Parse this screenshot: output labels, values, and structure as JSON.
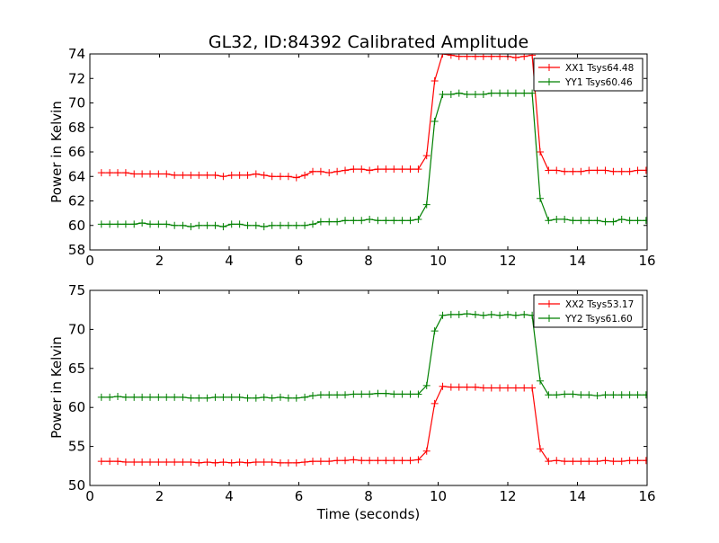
{
  "figure": {
    "title": "GL32, ID:84392 Calibrated Amplitude",
    "xlabel": "Time (seconds)"
  },
  "chart_data": [
    {
      "type": "line",
      "title": "GL32, ID:84392 Calibrated Amplitude",
      "xlabel": "",
      "ylabel": "Power in Kelvin",
      "xlim": [
        0,
        16
      ],
      "ylim": [
        58,
        74
      ],
      "xticks": [
        0,
        2,
        4,
        6,
        8,
        10,
        12,
        14,
        16
      ],
      "yticks": [
        58,
        60,
        62,
        64,
        66,
        68,
        70,
        72,
        74
      ],
      "grid": false,
      "legend_position": "top-right",
      "x": [
        0.33,
        0.57,
        0.8,
        1.03,
        1.27,
        1.5,
        1.73,
        1.97,
        2.2,
        2.43,
        2.67,
        2.9,
        3.13,
        3.37,
        3.6,
        3.83,
        4.07,
        4.3,
        4.53,
        4.77,
        5.0,
        5.23,
        5.47,
        5.7,
        5.93,
        6.17,
        6.4,
        6.63,
        6.87,
        7.1,
        7.33,
        7.57,
        7.8,
        8.03,
        8.27,
        8.5,
        8.73,
        8.97,
        9.2,
        9.43,
        9.67,
        9.9,
        10.13,
        10.37,
        10.6,
        10.83,
        11.07,
        11.3,
        11.53,
        11.77,
        12.0,
        12.23,
        12.47,
        12.7,
        12.93,
        13.17,
        13.4,
        13.63,
        13.87,
        14.1,
        14.33,
        14.57,
        14.8,
        15.03,
        15.27,
        15.5,
        15.73,
        15.97
      ],
      "series": [
        {
          "name": "XX1 Tsys64.48",
          "color": "#ff0000",
          "values": [
            64.3,
            64.3,
            64.3,
            64.3,
            64.2,
            64.2,
            64.2,
            64.2,
            64.2,
            64.1,
            64.1,
            64.1,
            64.1,
            64.1,
            64.1,
            64.0,
            64.1,
            64.1,
            64.1,
            64.2,
            64.1,
            64.0,
            64.0,
            64.0,
            63.9,
            64.1,
            64.4,
            64.4,
            64.3,
            64.4,
            64.5,
            64.6,
            64.6,
            64.5,
            64.6,
            64.6,
            64.6,
            64.6,
            64.6,
            64.6,
            65.7,
            71.8,
            74.0,
            73.9,
            73.8,
            73.8,
            73.8,
            73.8,
            73.8,
            73.8,
            73.8,
            73.7,
            73.8,
            73.9,
            66.0,
            64.5,
            64.5,
            64.4,
            64.4,
            64.4,
            64.5,
            64.5,
            64.5,
            64.4,
            64.4,
            64.4,
            64.5,
            64.5
          ]
        },
        {
          "name": "YY1 Tsys60.46",
          "color": "#008000",
          "values": [
            60.1,
            60.1,
            60.1,
            60.1,
            60.1,
            60.2,
            60.1,
            60.1,
            60.1,
            60.0,
            60.0,
            59.9,
            60.0,
            60.0,
            60.0,
            59.9,
            60.1,
            60.1,
            60.0,
            60.0,
            59.9,
            60.0,
            60.0,
            60.0,
            60.0,
            60.0,
            60.1,
            60.3,
            60.3,
            60.3,
            60.4,
            60.4,
            60.4,
            60.5,
            60.4,
            60.4,
            60.4,
            60.4,
            60.4,
            60.5,
            61.7,
            68.5,
            70.7,
            70.7,
            70.8,
            70.7,
            70.7,
            70.7,
            70.8,
            70.8,
            70.8,
            70.8,
            70.8,
            70.8,
            62.2,
            60.4,
            60.5,
            60.5,
            60.4,
            60.4,
            60.4,
            60.4,
            60.3,
            60.3,
            60.5,
            60.4,
            60.4,
            60.4
          ]
        }
      ]
    },
    {
      "type": "line",
      "title": "",
      "xlabel": "Time (seconds)",
      "ylabel": "Power in Kelvin",
      "xlim": [
        0,
        16
      ],
      "ylim": [
        50,
        75
      ],
      "xticks": [
        0,
        2,
        4,
        6,
        8,
        10,
        12,
        14,
        16
      ],
      "yticks": [
        50,
        55,
        60,
        65,
        70,
        75
      ],
      "grid": false,
      "legend_position": "top-right",
      "x": [
        0.33,
        0.57,
        0.8,
        1.03,
        1.27,
        1.5,
        1.73,
        1.97,
        2.2,
        2.43,
        2.67,
        2.9,
        3.13,
        3.37,
        3.6,
        3.83,
        4.07,
        4.3,
        4.53,
        4.77,
        5.0,
        5.23,
        5.47,
        5.7,
        5.93,
        6.17,
        6.4,
        6.63,
        6.87,
        7.1,
        7.33,
        7.57,
        7.8,
        8.03,
        8.27,
        8.5,
        8.73,
        8.97,
        9.2,
        9.43,
        9.67,
        9.9,
        10.13,
        10.37,
        10.6,
        10.83,
        11.07,
        11.3,
        11.53,
        11.77,
        12.0,
        12.23,
        12.47,
        12.7,
        12.93,
        13.17,
        13.4,
        13.63,
        13.87,
        14.1,
        14.33,
        14.57,
        14.8,
        15.03,
        15.27,
        15.5,
        15.73,
        15.97
      ],
      "series": [
        {
          "name": "XX2 Tsys53.17",
          "color": "#ff0000",
          "values": [
            53.1,
            53.1,
            53.1,
            53.0,
            53.0,
            53.0,
            53.0,
            53.0,
            53.0,
            53.0,
            53.0,
            53.0,
            52.9,
            53.0,
            52.9,
            53.0,
            52.9,
            53.0,
            52.9,
            53.0,
            53.0,
            53.0,
            52.9,
            52.9,
            52.9,
            53.0,
            53.1,
            53.1,
            53.1,
            53.2,
            53.2,
            53.3,
            53.2,
            53.2,
            53.2,
            53.2,
            53.2,
            53.2,
            53.2,
            53.3,
            54.4,
            60.5,
            62.7,
            62.6,
            62.6,
            62.6,
            62.6,
            62.5,
            62.5,
            62.5,
            62.5,
            62.5,
            62.5,
            62.5,
            54.7,
            53.1,
            53.2,
            53.1,
            53.1,
            53.1,
            53.1,
            53.1,
            53.2,
            53.1,
            53.1,
            53.2,
            53.2,
            53.2
          ]
        },
        {
          "name": "YY2 Tsys61.60",
          "color": "#008000",
          "values": [
            61.3,
            61.3,
            61.4,
            61.3,
            61.3,
            61.3,
            61.3,
            61.3,
            61.3,
            61.3,
            61.3,
            61.2,
            61.2,
            61.2,
            61.3,
            61.3,
            61.3,
            61.3,
            61.2,
            61.2,
            61.3,
            61.2,
            61.3,
            61.2,
            61.2,
            61.3,
            61.5,
            61.6,
            61.6,
            61.6,
            61.6,
            61.7,
            61.7,
            61.7,
            61.8,
            61.8,
            61.7,
            61.7,
            61.7,
            61.7,
            62.8,
            69.8,
            71.8,
            71.9,
            71.9,
            72.0,
            71.9,
            71.8,
            71.9,
            71.8,
            71.9,
            71.8,
            71.9,
            71.8,
            63.4,
            61.6,
            61.6,
            61.7,
            61.7,
            61.6,
            61.6,
            61.5,
            61.6,
            61.6,
            61.6,
            61.6,
            61.6,
            61.6
          ]
        }
      ]
    }
  ]
}
